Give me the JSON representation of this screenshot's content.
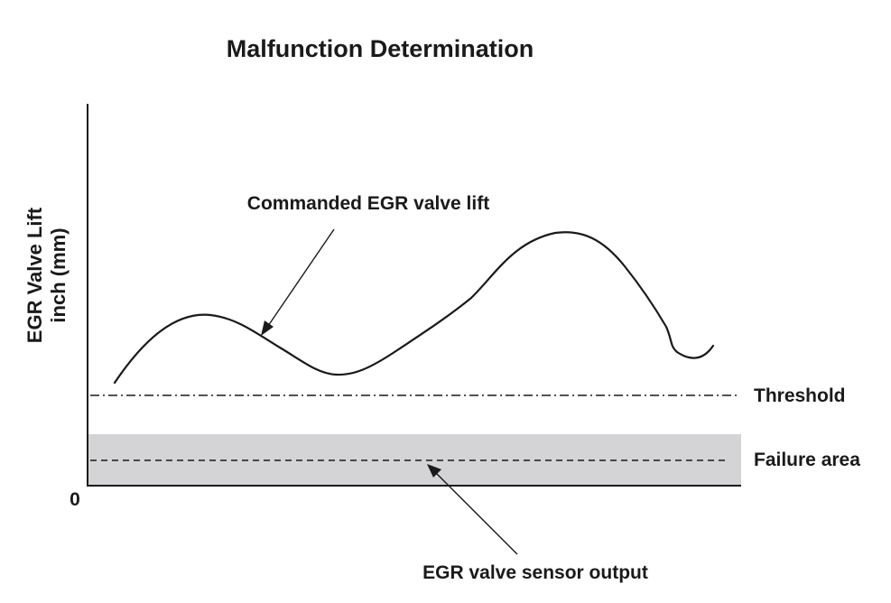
{
  "title": "Malfunction Determination",
  "y_axis_label": {
    "line1": "EGR Valve Lift",
    "line2": "inch (mm)"
  },
  "origin_label": "0",
  "annotations": {
    "commanded": "Commanded EGR valve lift",
    "threshold": "Threshold",
    "failure_area": "Failure area",
    "sensor_output": "EGR valve sensor output"
  },
  "colors": {
    "ink": "#1a1a1a",
    "failure_area_fill": "#d4d4d6"
  }
}
